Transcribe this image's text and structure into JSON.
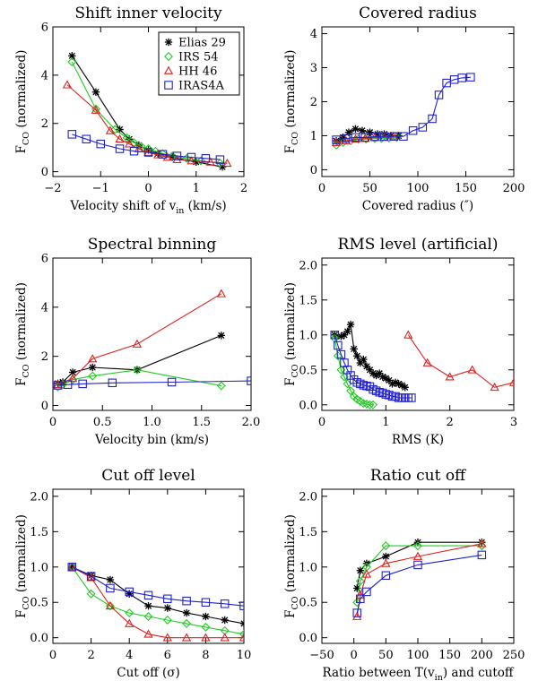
{
  "colors": {
    "Elias 29": "#000000",
    "IRS 54": "#22cc22",
    "HH 46": "#dd2222",
    "IRAS4A": "#2222cc"
  },
  "markers": {
    "Elias 29": "asterisk",
    "IRS 54": "diamond",
    "HH 46": "triangle",
    "IRAS4A": "square"
  },
  "legend": [
    "Elias 29",
    "IRS 54",
    "HH 46",
    "IRAS4A"
  ],
  "ylabel_main": "F",
  "ylabel_sub": "CO",
  "ylabel_rest": " (normalized)",
  "chart_data": [
    {
      "id": "shift",
      "type": "line",
      "title": "Shift inner velocity",
      "xlabel": "Velocity shift of v",
      "xlabel_sub": "in",
      "xlabel_rest": " (km/s)",
      "xlim": [
        -2,
        2
      ],
      "ylim": [
        -0.2,
        6
      ],
      "xticks": [
        -2,
        -1,
        0,
        1,
        2
      ],
      "xtick_labels": [
        "−2",
        "−1",
        "0",
        "1",
        "2"
      ],
      "yticks": [
        0,
        2,
        4,
        6
      ],
      "ytick_labels": [
        "0",
        "2",
        "4",
        "6"
      ],
      "legend": true,
      "series": [
        {
          "name": "Elias 29",
          "x": [
            -1.6,
            -1.1,
            -0.6,
            -0.4,
            -0.2,
            0.0,
            0.2,
            0.5,
            1.0,
            1.55
          ],
          "y": [
            4.8,
            3.3,
            1.75,
            1.35,
            1.1,
            0.9,
            0.75,
            0.6,
            0.4,
            0.2
          ]
        },
        {
          "name": "IRS 54",
          "x": [
            -1.6,
            -1.1,
            -0.7,
            -0.45,
            -0.3,
            -0.15,
            0.0,
            0.15,
            0.3,
            0.5,
            0.8,
            1.1,
            1.5
          ],
          "y": [
            4.55,
            2.6,
            1.75,
            1.4,
            1.2,
            1.05,
            0.95,
            0.85,
            0.75,
            0.65,
            0.55,
            0.45,
            0.35
          ]
        },
        {
          "name": "HH 46",
          "x": [
            -1.7,
            -1.1,
            -0.8,
            -0.6,
            -0.4,
            -0.2,
            0.0,
            0.2,
            0.4,
            0.6,
            0.9,
            1.3,
            1.65
          ],
          "y": [
            3.6,
            2.55,
            1.7,
            1.35,
            1.15,
            0.95,
            0.8,
            0.7,
            0.6,
            0.5,
            0.45,
            0.4,
            0.35
          ]
        },
        {
          "name": "IRAS4A",
          "x": [
            -1.6,
            -1.3,
            -1.0,
            -0.6,
            -0.3,
            0.0,
            0.3,
            0.6,
            0.9,
            1.2,
            1.5
          ],
          "y": [
            1.55,
            1.35,
            1.15,
            0.95,
            0.85,
            0.8,
            0.72,
            0.65,
            0.6,
            0.55,
            0.5
          ]
        }
      ]
    },
    {
      "id": "radius",
      "type": "line",
      "title": "Covered radius",
      "xlabel": "Covered radius (″)",
      "xlim": [
        0,
        200
      ],
      "ylim": [
        -0.2,
        4.2
      ],
      "xticks": [
        0,
        50,
        100,
        150,
        200
      ],
      "xtick_labels": [
        "0",
        "50",
        "100",
        "150",
        "200"
      ],
      "yticks": [
        0,
        1,
        2,
        3,
        4
      ],
      "ytick_labels": [
        "0",
        "1",
        "2",
        "3",
        "4"
      ],
      "legend": false,
      "series": [
        {
          "name": "Elias 29",
          "x": [
            15,
            22,
            28,
            35,
            42,
            50,
            58,
            65,
            72,
            80
          ],
          "y": [
            0.85,
            0.95,
            1.1,
            1.2,
            1.15,
            1.1,
            1.05,
            1.05,
            1.0,
            1.0
          ]
        },
        {
          "name": "IRS 54",
          "x": [
            15,
            22,
            30,
            38,
            46,
            55,
            62,
            70,
            78
          ],
          "y": [
            0.72,
            0.8,
            0.85,
            0.9,
            0.9,
            0.92,
            0.92,
            0.93,
            0.95
          ]
        },
        {
          "name": "HH 46",
          "x": [
            15,
            25,
            35,
            45,
            55,
            65,
            75
          ],
          "y": [
            0.8,
            0.85,
            0.9,
            0.92,
            0.95,
            0.95,
            0.97
          ]
        },
        {
          "name": "IRAS4A",
          "x": [
            15,
            25,
            35,
            45,
            55,
            65,
            75,
            85,
            95,
            105,
            115,
            122,
            130,
            138,
            146,
            155
          ],
          "y": [
            0.88,
            0.92,
            0.95,
            0.95,
            0.97,
            0.98,
            0.98,
            0.98,
            1.15,
            1.25,
            1.5,
            2.2,
            2.55,
            2.65,
            2.7,
            2.72
          ]
        }
      ]
    },
    {
      "id": "binning",
      "type": "line",
      "title": "Spectral binning",
      "xlabel": "Velocity bin (km/s)",
      "xlim": [
        0,
        2
      ],
      "ylim": [
        -0.2,
        6
      ],
      "xticks": [
        0,
        0.5,
        1,
        1.5,
        2
      ],
      "xtick_labels": [
        "0",
        "0.5",
        "1.0",
        "1.5",
        "2.0"
      ],
      "yticks": [
        0,
        2,
        4,
        6
      ],
      "ytick_labels": [
        "0",
        "2",
        "4",
        "6"
      ],
      "legend": false,
      "series": [
        {
          "name": "Elias 29",
          "x": [
            0.05,
            0.1,
            0.2,
            0.4,
            0.85,
            1.7
          ],
          "y": [
            0.9,
            0.95,
            1.35,
            1.55,
            1.45,
            2.85
          ]
        },
        {
          "name": "IRS 54",
          "x": [
            0.05,
            0.1,
            0.2,
            0.4,
            0.85,
            1.7
          ],
          "y": [
            0.75,
            0.85,
            1.05,
            1.2,
            1.45,
            0.8
          ]
        },
        {
          "name": "HH 46",
          "x": [
            0.05,
            0.2,
            0.4,
            0.85,
            1.7
          ],
          "y": [
            0.85,
            1.1,
            1.9,
            2.5,
            4.55
          ]
        },
        {
          "name": "IRAS4A",
          "x": [
            0.05,
            0.15,
            0.3,
            0.6,
            1.2,
            2.0
          ],
          "y": [
            0.82,
            0.85,
            0.88,
            0.92,
            0.95,
            1.0
          ]
        }
      ]
    },
    {
      "id": "rms",
      "type": "line",
      "title": "RMS level (artificial)",
      "xlabel": "RMS (K)",
      "xlim": [
        0,
        3
      ],
      "ylim": [
        -0.08,
        2.1
      ],
      "xticks": [
        0,
        1,
        2,
        3
      ],
      "xtick_labels": [
        "0",
        "1",
        "2",
        "3"
      ],
      "yticks": [
        0,
        0.5,
        1,
        1.5,
        2
      ],
      "ytick_labels": [
        "0.0",
        "0.5",
        "1.0",
        "1.5",
        "2.0"
      ],
      "legend": false,
      "series": [
        {
          "name": "Elias 29",
          "x": [
            0.2,
            0.3,
            0.35,
            0.4,
            0.45,
            0.5,
            0.55,
            0.6,
            0.65,
            0.7,
            0.75,
            0.8,
            0.85,
            0.9,
            0.95,
            1.0,
            1.05,
            1.1,
            1.15,
            1.2,
            1.25,
            1.3
          ],
          "y": [
            1.0,
            0.98,
            1.0,
            1.05,
            1.15,
            0.8,
            0.7,
            0.6,
            0.65,
            0.55,
            0.5,
            0.45,
            0.42,
            0.45,
            0.4,
            0.38,
            0.35,
            0.3,
            0.32,
            0.3,
            0.28,
            0.25
          ]
        },
        {
          "name": "IRS 54",
          "x": [
            0.2,
            0.25,
            0.3,
            0.35,
            0.4,
            0.45,
            0.5,
            0.55,
            0.6,
            0.65,
            0.7,
            0.75,
            0.8
          ],
          "y": [
            0.95,
            0.7,
            0.5,
            0.4,
            0.3,
            0.2,
            0.12,
            0.08,
            0.05,
            0.02,
            0.01,
            0.0,
            0.0
          ]
        },
        {
          "name": "HH 46",
          "x": [
            1.35,
            1.65,
            2.0,
            2.35,
            2.7,
            3.0
          ],
          "y": [
            1.0,
            0.6,
            0.4,
            0.5,
            0.25,
            0.32
          ]
        },
        {
          "name": "IRAS4A",
          "x": [
            0.2,
            0.25,
            0.3,
            0.35,
            0.4,
            0.45,
            0.5,
            0.55,
            0.6,
            0.65,
            0.7,
            0.75,
            0.8,
            0.85,
            0.9,
            0.95,
            1.0,
            1.05,
            1.1,
            1.15,
            1.2,
            1.25,
            1.3,
            1.35,
            1.4
          ],
          "y": [
            1.0,
            0.85,
            0.72,
            0.6,
            0.5,
            0.42,
            0.36,
            0.32,
            0.3,
            0.28,
            0.27,
            0.26,
            0.22,
            0.2,
            0.18,
            0.17,
            0.15,
            0.14,
            0.12,
            0.12,
            0.1,
            0.1,
            0.1,
            0.1,
            0.1
          ]
        }
      ]
    },
    {
      "id": "cutoff",
      "type": "line",
      "title": "Cut off level",
      "xlabel": "Cut off (σ)",
      "xlim": [
        0,
        10
      ],
      "ylim": [
        -0.08,
        2.1
      ],
      "xticks": [
        0,
        2,
        4,
        6,
        8,
        10
      ],
      "xtick_labels": [
        "0",
        "2",
        "4",
        "6",
        "8",
        "10"
      ],
      "yticks": [
        0,
        0.5,
        1,
        1.5,
        2
      ],
      "ytick_labels": [
        "0.0",
        "0.5",
        "1.0",
        "1.5",
        "2.0"
      ],
      "legend": false,
      "series": [
        {
          "name": "Elias 29",
          "x": [
            1,
            2,
            3,
            4,
            5,
            6,
            7,
            8,
            9,
            10
          ],
          "y": [
            1.0,
            0.88,
            0.82,
            0.62,
            0.45,
            0.42,
            0.35,
            0.3,
            0.25,
            0.2
          ]
        },
        {
          "name": "IRS 54",
          "x": [
            1,
            2,
            3,
            4,
            5,
            6,
            7,
            8,
            9,
            10
          ],
          "y": [
            1.0,
            0.62,
            0.45,
            0.35,
            0.3,
            0.25,
            0.2,
            0.15,
            0.1,
            0.05
          ]
        },
        {
          "name": "HH 46",
          "x": [
            1,
            2,
            3,
            4,
            5,
            6,
            7,
            8,
            9,
            10
          ],
          "y": [
            1.0,
            0.85,
            0.45,
            0.2,
            0.05,
            0.0,
            0.0,
            0.0,
            0.0,
            0.0
          ]
        },
        {
          "name": "IRAS4A",
          "x": [
            1,
            2,
            3,
            4,
            5,
            6,
            7,
            8,
            9,
            10
          ],
          "y": [
            1.0,
            0.87,
            0.7,
            0.65,
            0.6,
            0.55,
            0.52,
            0.5,
            0.48,
            0.45
          ]
        }
      ]
    },
    {
      "id": "ratio",
      "type": "line",
      "title": "Ratio cut off",
      "xlabel": "Ratio between T(v",
      "xlabel_sub": "in",
      "xlabel_rest": ") and cutoff",
      "xlim": [
        -50,
        250
      ],
      "ylim": [
        -0.08,
        2.1
      ],
      "xticks": [
        -50,
        0,
        50,
        100,
        150,
        200,
        250
      ],
      "xtick_labels": [
        "−50",
        "0",
        "50",
        "100",
        "150",
        "200",
        "250"
      ],
      "yticks": [
        0,
        0.5,
        1,
        1.5,
        2
      ],
      "ytick_labels": [
        "0.0",
        "0.5",
        "1.0",
        "1.5",
        "2.0"
      ],
      "legend": false,
      "series": [
        {
          "name": "Elias 29",
          "x": [
            5,
            10,
            20,
            50,
            100,
            200
          ],
          "y": [
            0.7,
            0.95,
            1.05,
            1.15,
            1.35,
            1.35
          ]
        },
        {
          "name": "IRS 54",
          "x": [
            5,
            10,
            20,
            50,
            100,
            200
          ],
          "y": [
            0.5,
            0.8,
            1.0,
            1.3,
            1.3,
            1.3
          ]
        },
        {
          "name": "HH 46",
          "x": [
            5,
            10,
            20,
            50,
            100,
            200
          ],
          "y": [
            0.3,
            0.6,
            0.9,
            1.05,
            1.15,
            1.33
          ]
        },
        {
          "name": "IRAS4A",
          "x": [
            5,
            10,
            20,
            50,
            100,
            200
          ],
          "y": [
            0.35,
            0.55,
            0.65,
            0.88,
            1.03,
            1.17
          ]
        }
      ]
    }
  ]
}
